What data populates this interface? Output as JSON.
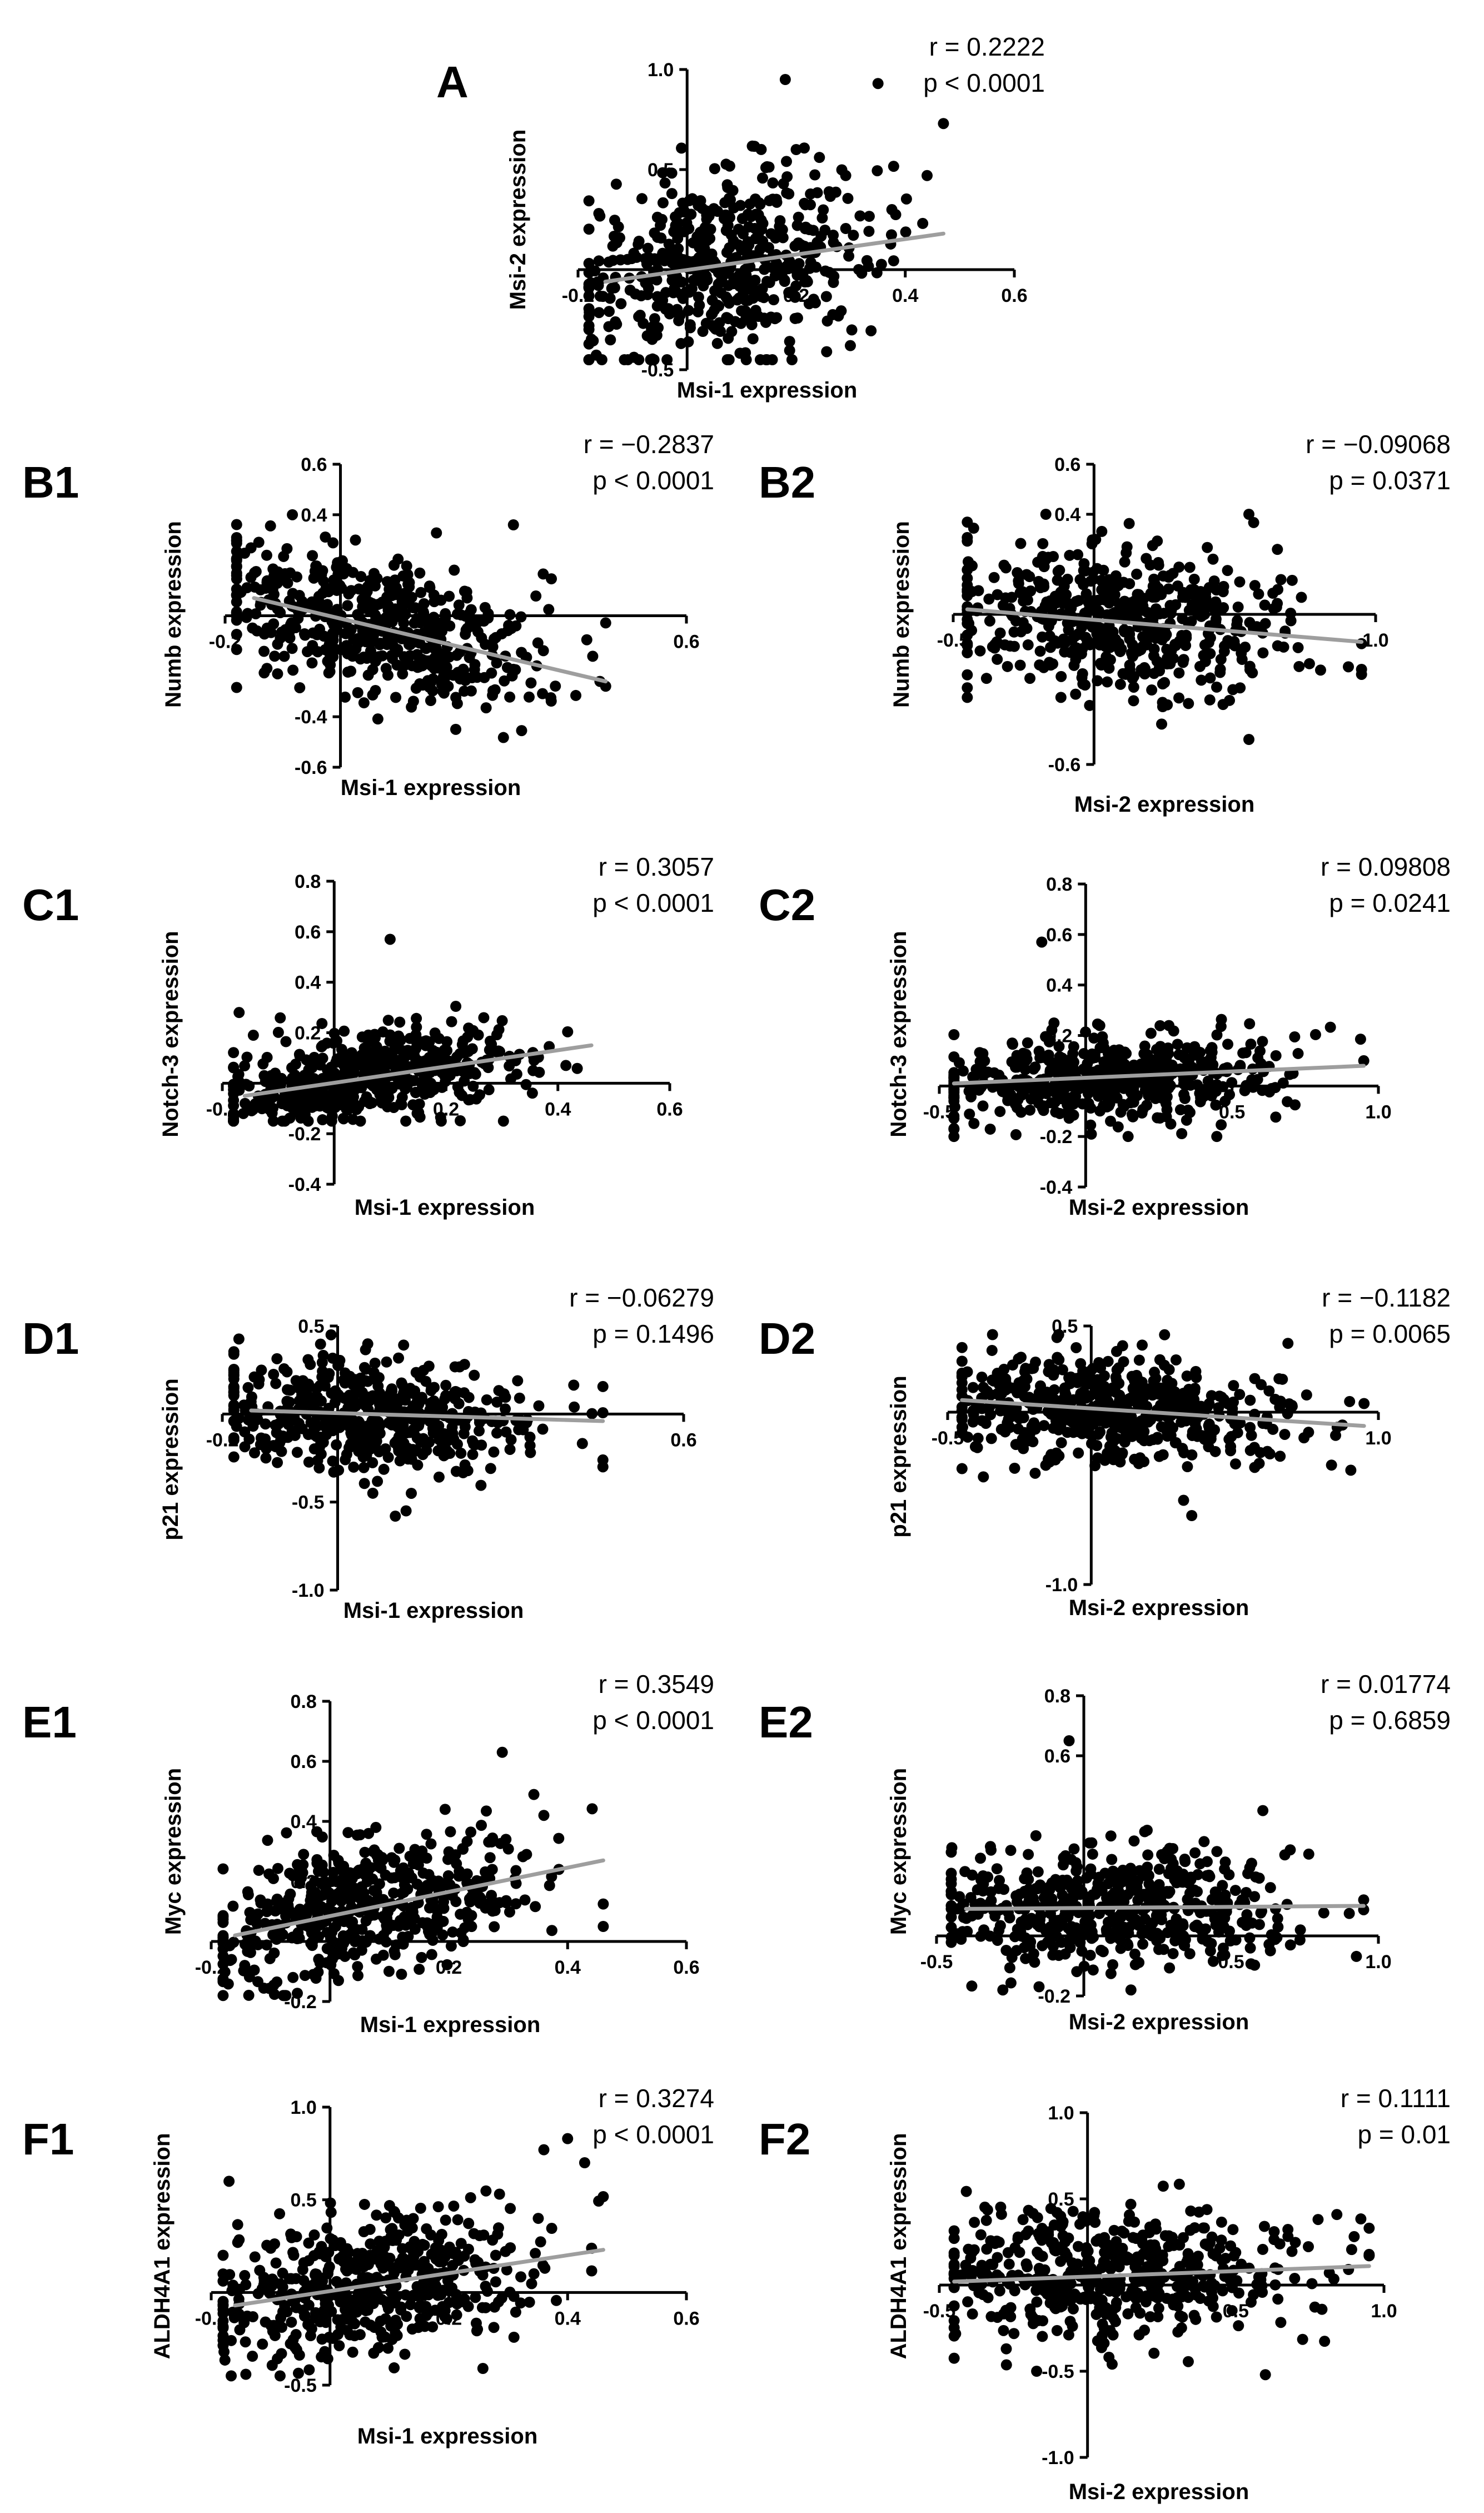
{
  "chart_data": [
    {
      "id": "A",
      "label": "A",
      "type": "scatter",
      "xlabel": "Msi-1 expression",
      "ylabel": "Msi-2 expression",
      "xlim": [
        -0.2,
        0.6
      ],
      "ylim": [
        -0.5,
        1.0
      ],
      "xticks": [
        -0.2,
        0.2,
        0.4,
        0.6
      ],
      "yticks": [
        -0.5,
        0.5,
        1.0
      ],
      "xtick_labels": [
        "-0.2",
        "0.2",
        "0.4",
        "0.6"
      ],
      "ytick_labels": [
        "-0.5",
        "0.5",
        "1.0"
      ],
      "r_text": "r = 0.2222",
      "p_text": "p < 0.0001",
      "n": 520,
      "fit": {
        "x": [
          -0.15,
          0.47
        ],
        "y": [
          -0.06,
          0.18
        ]
      },
      "x_range": [
        -0.18,
        0.47
      ],
      "y_range": [
        -0.45,
        0.95
      ],
      "highlight_points": [
        {
          "x": 0.18,
          "y": 0.95
        },
        {
          "x": 0.35,
          "y": 0.93
        },
        {
          "x": 0.47,
          "y": 0.73
        },
        {
          "x": 0.44,
          "y": 0.47
        },
        {
          "x": 0.2,
          "y": 0.6
        }
      ]
    },
    {
      "id": "B1",
      "label": "B1",
      "type": "scatter",
      "xlabel": "Msi-1 expression",
      "ylabel": "Numb expression",
      "xlim": [
        -0.2,
        0.6
      ],
      "ylim": [
        -0.6,
        0.6
      ],
      "xticks": [
        -0.2,
        0.6
      ],
      "yticks": [
        -0.6,
        -0.4,
        0.4,
        0.6
      ],
      "xtick_labels": [
        "-0.2",
        "0.6"
      ],
      "ytick_labels": [
        "-0.6",
        "-0.4",
        "0.4",
        "0.6"
      ],
      "r_text": "r = −0.2837",
      "p_text": "p < 0.0001",
      "n": 520,
      "fit": {
        "x": [
          -0.15,
          0.46
        ],
        "y": [
          0.07,
          -0.26
        ]
      },
      "x_range": [
        -0.18,
        0.46
      ],
      "y_range": [
        -0.5,
        0.4
      ],
      "highlight_points": [
        {
          "x": 0.45,
          "y": -0.26
        },
        {
          "x": 0.3,
          "y": 0.36
        },
        {
          "x": 0.2,
          "y": -0.45
        }
      ]
    },
    {
      "id": "B2",
      "label": "B2",
      "type": "scatter",
      "xlabel": "Msi-2 expression",
      "ylabel": "Numb expression",
      "xlim": [
        -0.5,
        1.0
      ],
      "ylim": [
        -0.6,
        0.6
      ],
      "xticks": [
        -0.5,
        1.0
      ],
      "yticks": [
        -0.6,
        0.4,
        0.6
      ],
      "xtick_labels": [
        "-0.5",
        "1.0"
      ],
      "ytick_labels": [
        "-0.6",
        "0.4",
        "0.6"
      ],
      "r_text": "r = −0.09068",
      "p_text": "p = 0.0371",
      "n": 520,
      "fit": {
        "x": [
          -0.45,
          0.95
        ],
        "y": [
          0.02,
          -0.11
        ]
      },
      "x_range": [
        -0.45,
        0.95
      ],
      "y_range": [
        -0.5,
        0.4
      ],
      "highlight_points": [
        {
          "x": 0.55,
          "y": 0.4
        },
        {
          "x": 0.95,
          "y": -0.22
        },
        {
          "x": 0.55,
          "y": -0.5
        }
      ]
    },
    {
      "id": "C1",
      "label": "C1",
      "type": "scatter",
      "xlabel": "Msi-1 expression",
      "ylabel": "Notch-3 expression",
      "xlim": [
        -0.2,
        0.6
      ],
      "ylim": [
        -0.4,
        0.8
      ],
      "xticks": [
        -0.2,
        0.2,
        0.4,
        0.6
      ],
      "yticks": [
        -0.4,
        -0.2,
        0.2,
        0.4,
        0.6,
        0.8
      ],
      "xtick_labels": [
        "-0.2",
        "0.2",
        "0.4",
        "0.6"
      ],
      "ytick_labels": [
        "-0.4",
        "-0.2",
        "0.2",
        "0.4",
        "0.6",
        "0.8"
      ],
      "r_text": "r = 0.3057",
      "p_text": "p < 0.0001",
      "n": 520,
      "fit": {
        "x": [
          -0.16,
          0.46
        ],
        "y": [
          -0.05,
          0.15
        ]
      },
      "x_range": [
        -0.18,
        0.46
      ],
      "y_range": [
        -0.15,
        0.35
      ],
      "highlight_points": [
        {
          "x": 0.1,
          "y": 0.57
        },
        {
          "x": -0.17,
          "y": 0.28
        }
      ]
    },
    {
      "id": "C2",
      "label": "C2",
      "type": "scatter",
      "xlabel": "Msi-2 expression",
      "ylabel": "Notch-3 expression",
      "xlim": [
        -0.5,
        1.0
      ],
      "ylim": [
        -0.4,
        0.8
      ],
      "xticks": [
        -0.5,
        0.5,
        1.0
      ],
      "yticks": [
        -0.4,
        -0.2,
        0.2,
        0.4,
        0.6,
        0.8
      ],
      "xtick_labels": [
        "-0.5",
        "0.5",
        "1.0"
      ],
      "ytick_labels": [
        "-0.4",
        "-0.2",
        "0.2",
        "0.4",
        "0.6",
        "0.8"
      ],
      "r_text": "r = 0.09808",
      "p_text": "p = 0.0241",
      "n": 520,
      "fit": {
        "x": [
          -0.45,
          0.95
        ],
        "y": [
          0.01,
          0.08
        ]
      },
      "x_range": [
        -0.45,
        0.95
      ],
      "y_range": [
        -0.2,
        0.35
      ],
      "highlight_points": [
        {
          "x": -0.15,
          "y": 0.57
        },
        {
          "x": 0.95,
          "y": 0.1
        },
        {
          "x": 0.65,
          "y": 0.12
        }
      ]
    },
    {
      "id": "D1",
      "label": "D1",
      "type": "scatter",
      "xlabel": "Msi-1 expression",
      "ylabel": "p21 expression",
      "xlim": [
        -0.2,
        0.6
      ],
      "ylim": [
        -1.0,
        0.5
      ],
      "xticks": [
        -0.2,
        0.6
      ],
      "yticks": [
        -1.0,
        -0.5,
        0.5
      ],
      "xtick_labels": [
        "-0.2",
        "0.6"
      ],
      "ytick_labels": [
        "-1.0",
        "-0.5",
        "0.5"
      ],
      "r_text": "r = −0.06279",
      "p_text": "p = 0.1496",
      "n": 520,
      "fit": {
        "x": [
          -0.15,
          0.46
        ],
        "y": [
          0.02,
          -0.04
        ]
      },
      "x_range": [
        -0.18,
        0.46
      ],
      "y_range": [
        -0.55,
        0.45
      ],
      "highlight_points": [
        {
          "x": 0.46,
          "y": -0.3
        },
        {
          "x": 0.1,
          "y": -0.58
        }
      ]
    },
    {
      "id": "D2",
      "label": "D2",
      "type": "scatter",
      "xlabel": "Msi-2 expression",
      "ylabel": "p21 expression",
      "xlim": [
        -0.5,
        1.0
      ],
      "ylim": [
        -1.0,
        0.5
      ],
      "xticks": [
        -0.5,
        1.0
      ],
      "yticks": [
        -1.0,
        0.5
      ],
      "xtick_labels": [
        "-0.5",
        "1.0"
      ],
      "ytick_labels": [
        "-1.0",
        "0.5"
      ],
      "r_text": "r = −0.1182",
      "p_text": "p = 0.0065",
      "n": 520,
      "fit": {
        "x": [
          -0.45,
          0.95
        ],
        "y": [
          0.07,
          -0.08
        ]
      },
      "x_range": [
        -0.45,
        0.95
      ],
      "y_range": [
        -0.55,
        0.45
      ],
      "highlight_points": [
        {
          "x": 0.95,
          "y": 0.05
        },
        {
          "x": 0.35,
          "y": -0.6
        },
        {
          "x": 0.75,
          "y": 0.1
        }
      ]
    },
    {
      "id": "E1",
      "label": "E1",
      "type": "scatter",
      "xlabel": "Msi-1 expression",
      "ylabel": "Myc expression",
      "xlim": [
        -0.2,
        0.6
      ],
      "ylim": [
        -0.2,
        0.8
      ],
      "xticks": [
        -0.2,
        0.2,
        0.4,
        0.6
      ],
      "yticks": [
        -0.2,
        0.2,
        0.4,
        0.6,
        0.8
      ],
      "xtick_labels": [
        "-0.2",
        "0.2",
        "0.4",
        "0.6"
      ],
      "ytick_labels": [
        "-0.2",
        "0.2",
        "0.4",
        "0.6",
        "0.8"
      ],
      "r_text": "r = 0.3549",
      "p_text": "p < 0.0001",
      "n": 520,
      "fit": {
        "x": [
          -0.16,
          0.46
        ],
        "y": [
          0.02,
          0.27
        ]
      },
      "x_range": [
        -0.18,
        0.46
      ],
      "y_range": [
        -0.18,
        0.5
      ],
      "highlight_points": [
        {
          "x": 0.29,
          "y": 0.63
        },
        {
          "x": 0.36,
          "y": 0.42
        },
        {
          "x": 0.46,
          "y": 0.05
        }
      ]
    },
    {
      "id": "E2",
      "label": "E2",
      "type": "scatter",
      "xlabel": "Msi-2 expression",
      "ylabel": "Myc expression",
      "xlim": [
        -0.5,
        1.0
      ],
      "ylim": [
        -0.2,
        0.8
      ],
      "xticks": [
        -0.5,
        0.5,
        1.0
      ],
      "yticks": [
        -0.2,
        0.6,
        0.8
      ],
      "xtick_labels": [
        "-0.5",
        "0.5",
        "1.0"
      ],
      "ytick_labels": [
        "-0.2",
        "0.6",
        "0.8"
      ],
      "r_text": "r = 0.01774",
      "p_text": "p = 0.6859",
      "n": 520,
      "fit": {
        "x": [
          -0.4,
          0.95
        ],
        "y": [
          0.09,
          0.1
        ]
      },
      "x_range": [
        -0.45,
        0.95
      ],
      "y_range": [
        -0.18,
        0.45
      ],
      "highlight_points": [
        {
          "x": -0.05,
          "y": 0.65
        },
        {
          "x": 0.95,
          "y": 0.12
        }
      ]
    },
    {
      "id": "F1",
      "label": "F1",
      "type": "scatter",
      "xlabel": "Msi-1 expression",
      "ylabel": "ALDH4A1 expression",
      "xlim": [
        -0.2,
        0.6
      ],
      "ylim": [
        -0.5,
        1.0
      ],
      "xticks": [
        -0.2,
        0.2,
        0.4,
        0.6
      ],
      "yticks": [
        -0.5,
        0.5,
        1.0
      ],
      "xtick_labels": [
        "-0.2",
        "0.2",
        "0.4",
        "0.6"
      ],
      "ytick_labels": [
        "-0.5",
        "0.5",
        "1.0"
      ],
      "r_text": "r = 0.3274",
      "p_text": "p < 0.0001",
      "n": 520,
      "fit": {
        "x": [
          -0.16,
          0.46
        ],
        "y": [
          -0.07,
          0.23
        ]
      },
      "x_range": [
        -0.18,
        0.46
      ],
      "y_range": [
        -0.45,
        0.7
      ],
      "highlight_points": [
        {
          "x": 0.4,
          "y": 0.83
        },
        {
          "x": 0.36,
          "y": 0.77
        },
        {
          "x": -0.17,
          "y": 0.6
        }
      ]
    },
    {
      "id": "F2",
      "label": "F2",
      "type": "scatter",
      "xlabel": "Msi-2 expression",
      "ylabel": "ALDH4A1 expression",
      "xlim": [
        -0.5,
        1.0
      ],
      "ylim": [
        -1.0,
        1.0
      ],
      "xticks": [
        -0.5,
        0.5,
        1.0
      ],
      "yticks": [
        -1.0,
        -0.5,
        0.5,
        1.0
      ],
      "xtick_labels": [
        "-0.5",
        "0.5",
        "1.0"
      ],
      "ytick_labels": [
        "-1.0",
        "-0.5",
        "0.5",
        "1.0"
      ],
      "r_text": "r = 0.1111",
      "p_text": "p = 0.01",
      "n": 520,
      "fit": {
        "x": [
          -0.45,
          0.95
        ],
        "y": [
          0.02,
          0.11
        ]
      },
      "x_range": [
        -0.45,
        0.95
      ],
      "y_range": [
        -0.5,
        0.7
      ],
      "highlight_points": [
        {
          "x": 0.6,
          "y": -0.52
        },
        {
          "x": 0.95,
          "y": 0.17
        }
      ]
    }
  ]
}
